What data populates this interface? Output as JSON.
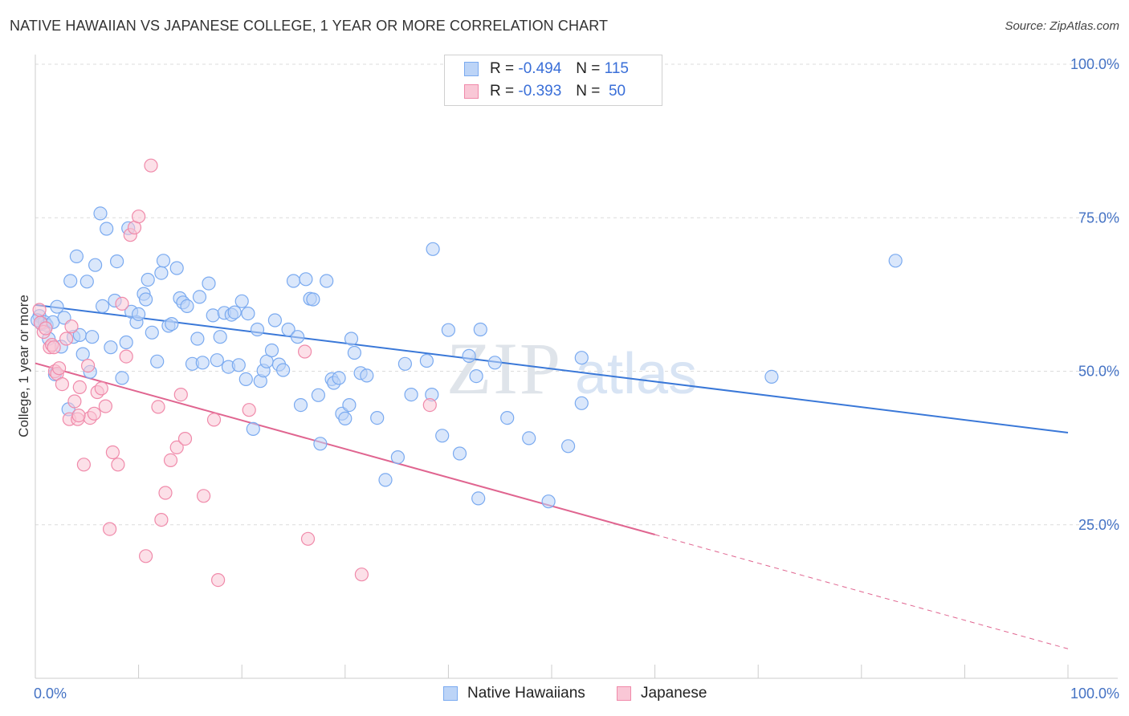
{
  "title": "NATIVE HAWAIIAN VS JAPANESE COLLEGE, 1 YEAR OR MORE CORRELATION CHART",
  "source": "Source: ZipAtlas.com",
  "watermark": {
    "zip": "ZIP",
    "atlas": "atlas"
  },
  "legend": {
    "rows": [
      {
        "r_label": "R =",
        "r_value": "-0.494",
        "n_label": "N =",
        "n_value": "115",
        "color": "#7aaaf0",
        "fill": "#bcd4f7"
      },
      {
        "r_label": "R =",
        "r_value": "-0.393",
        "n_label": "N =",
        "n_value": "50",
        "color": "#f08aaa",
        "fill": "#f9c7d6"
      }
    ]
  },
  "bottom_legend": [
    {
      "label": "Native Hawaiians",
      "color": "#7aaaf0",
      "fill": "#bcd4f7"
    },
    {
      "label": "Japanese",
      "color": "#f08aaa",
      "fill": "#f9c7d6"
    }
  ],
  "chart_data": {
    "type": "scatter",
    "title": "NATIVE HAWAIIAN VS JAPANESE COLLEGE, 1 YEAR OR MORE CORRELATION CHART",
    "xlabel": "",
    "ylabel": "College, 1 year or more",
    "xlim": [
      0,
      100
    ],
    "ylim": [
      0,
      100
    ],
    "x_tick_labels": [
      "0.0%",
      "100.0%"
    ],
    "y_ticks": [
      25,
      50,
      75,
      100
    ],
    "y_tick_labels": [
      "25.0%",
      "50.0%",
      "75.0%",
      "100.0%"
    ],
    "grid": true,
    "series": [
      {
        "name": "Native Hawaiians",
        "color": "#3a78d8",
        "point_stroke": "#7aaaf0",
        "point_fill": "#bcd4f7",
        "trend": {
          "x": [
            0,
            100
          ],
          "y": [
            60.8,
            40.0
          ],
          "dashed_from": null
        },
        "points": [
          [
            0.4,
            59.0
          ],
          [
            0.6,
            57.7
          ],
          [
            0.9,
            58.0
          ],
          [
            1.1,
            57.5
          ],
          [
            1.3,
            55.3
          ],
          [
            1.7,
            58.0
          ],
          [
            1.9,
            49.5
          ],
          [
            2.1,
            60.5
          ],
          [
            2.5,
            54.0
          ],
          [
            2.8,
            58.7
          ],
          [
            3.2,
            43.8
          ],
          [
            3.4,
            64.7
          ],
          [
            3.7,
            55.6
          ],
          [
            4.0,
            68.7
          ],
          [
            4.3,
            55.9
          ],
          [
            4.6,
            52.8
          ],
          [
            5.0,
            64.6
          ],
          [
            5.3,
            49.9
          ],
          [
            5.5,
            55.6
          ],
          [
            5.8,
            67.3
          ],
          [
            6.3,
            75.7
          ],
          [
            6.5,
            60.6
          ],
          [
            6.9,
            73.2
          ],
          [
            7.3,
            53.9
          ],
          [
            7.7,
            61.5
          ],
          [
            7.9,
            67.9
          ],
          [
            8.4,
            48.9
          ],
          [
            8.8,
            54.7
          ],
          [
            9.0,
            73.3
          ],
          [
            9.3,
            59.7
          ],
          [
            9.8,
            58.0
          ],
          [
            10.0,
            59.3
          ],
          [
            10.5,
            62.6
          ],
          [
            10.7,
            61.7
          ],
          [
            10.9,
            64.9
          ],
          [
            11.3,
            56.3
          ],
          [
            11.8,
            51.6
          ],
          [
            12.2,
            66.0
          ],
          [
            12.4,
            68.0
          ],
          [
            12.9,
            57.4
          ],
          [
            13.2,
            57.7
          ],
          [
            13.7,
            66.8
          ],
          [
            14.0,
            61.9
          ],
          [
            14.3,
            61.2
          ],
          [
            14.7,
            60.6
          ],
          [
            15.2,
            51.2
          ],
          [
            15.7,
            55.3
          ],
          [
            15.9,
            62.1
          ],
          [
            16.2,
            51.4
          ],
          [
            16.8,
            64.3
          ],
          [
            17.2,
            59.1
          ],
          [
            17.6,
            51.8
          ],
          [
            17.9,
            55.6
          ],
          [
            18.3,
            59.5
          ],
          [
            18.7,
            50.7
          ],
          [
            19.0,
            59.2
          ],
          [
            19.3,
            59.6
          ],
          [
            19.7,
            51.0
          ],
          [
            20.0,
            61.4
          ],
          [
            20.4,
            48.7
          ],
          [
            20.6,
            59.4
          ],
          [
            21.1,
            40.6
          ],
          [
            21.5,
            56.8
          ],
          [
            21.8,
            48.4
          ],
          [
            22.1,
            50.1
          ],
          [
            22.4,
            51.6
          ],
          [
            22.9,
            53.4
          ],
          [
            23.2,
            58.3
          ],
          [
            23.6,
            51.1
          ],
          [
            24.0,
            50.2
          ],
          [
            24.5,
            56.8
          ],
          [
            25.0,
            64.7
          ],
          [
            25.4,
            55.6
          ],
          [
            25.7,
            44.5
          ],
          [
            26.2,
            65.0
          ],
          [
            26.6,
            61.8
          ],
          [
            26.9,
            61.7
          ],
          [
            27.4,
            46.1
          ],
          [
            27.6,
            38.2
          ],
          [
            28.2,
            64.7
          ],
          [
            28.7,
            48.7
          ],
          [
            28.9,
            48.1
          ],
          [
            29.4,
            48.9
          ],
          [
            29.7,
            43.1
          ],
          [
            30.0,
            42.3
          ],
          [
            30.4,
            44.5
          ],
          [
            30.6,
            55.3
          ],
          [
            30.9,
            53.0
          ],
          [
            31.5,
            49.7
          ],
          [
            32.1,
            49.3
          ],
          [
            33.1,
            42.4
          ],
          [
            33.9,
            32.3
          ],
          [
            35.1,
            36.0
          ],
          [
            35.8,
            51.2
          ],
          [
            36.4,
            46.2
          ],
          [
            37.9,
            51.7
          ],
          [
            38.4,
            46.2
          ],
          [
            38.5,
            69.9
          ],
          [
            39.4,
            39.5
          ],
          [
            40.0,
            56.7
          ],
          [
            41.1,
            36.6
          ],
          [
            42.0,
            52.5
          ],
          [
            42.7,
            49.2
          ],
          [
            42.9,
            29.3
          ],
          [
            43.1,
            56.8
          ],
          [
            44.5,
            51.4
          ],
          [
            45.7,
            42.4
          ],
          [
            47.8,
            39.1
          ],
          [
            49.7,
            28.8
          ],
          [
            51.6,
            37.8
          ],
          [
            52.9,
            52.2
          ],
          [
            52.9,
            44.8
          ],
          [
            71.3,
            49.1
          ],
          [
            83.3,
            68.0
          ],
          [
            0.2,
            58.3
          ]
        ]
      },
      {
        "name": "Japanese",
        "color": "#e06590",
        "point_stroke": "#f08aaa",
        "point_fill": "#f9c7d6",
        "trend": {
          "x": [
            0,
            100
          ],
          "y": [
            51.3,
            4.8
          ],
          "dashed_from": 60
        },
        "points": [
          [
            0.4,
            60.0
          ],
          [
            0.5,
            57.9
          ],
          [
            0.8,
            56.4
          ],
          [
            1.0,
            57.0
          ],
          [
            1.4,
            53.9
          ],
          [
            1.6,
            54.3
          ],
          [
            1.9,
            50.0
          ],
          [
            2.1,
            49.6
          ],
          [
            2.3,
            50.5
          ],
          [
            2.6,
            47.9
          ],
          [
            3.0,
            55.3
          ],
          [
            3.3,
            42.2
          ],
          [
            3.5,
            57.3
          ],
          [
            3.8,
            45.1
          ],
          [
            4.1,
            42.2
          ],
          [
            4.3,
            47.4
          ],
          [
            4.7,
            34.8
          ],
          [
            5.1,
            50.9
          ],
          [
            5.3,
            42.4
          ],
          [
            5.7,
            43.1
          ],
          [
            6.0,
            46.6
          ],
          [
            6.4,
            47.2
          ],
          [
            6.8,
            44.3
          ],
          [
            7.2,
            24.3
          ],
          [
            7.5,
            36.8
          ],
          [
            8.0,
            34.8
          ],
          [
            8.4,
            61.0
          ],
          [
            8.8,
            52.4
          ],
          [
            9.2,
            72.2
          ],
          [
            9.6,
            73.4
          ],
          [
            10.0,
            75.2
          ],
          [
            10.7,
            19.9
          ],
          [
            11.2,
            83.5
          ],
          [
            11.9,
            44.2
          ],
          [
            12.2,
            25.8
          ],
          [
            12.6,
            30.2
          ],
          [
            13.1,
            35.5
          ],
          [
            13.7,
            37.6
          ],
          [
            14.1,
            46.2
          ],
          [
            14.5,
            39.0
          ],
          [
            16.3,
            29.7
          ],
          [
            17.3,
            42.1
          ],
          [
            17.7,
            16.0
          ],
          [
            20.7,
            43.7
          ],
          [
            26.1,
            53.2
          ],
          [
            26.4,
            22.7
          ],
          [
            31.6,
            16.9
          ],
          [
            38.2,
            44.5
          ],
          [
            4.2,
            42.8
          ],
          [
            1.8,
            53.9
          ]
        ]
      }
    ]
  }
}
